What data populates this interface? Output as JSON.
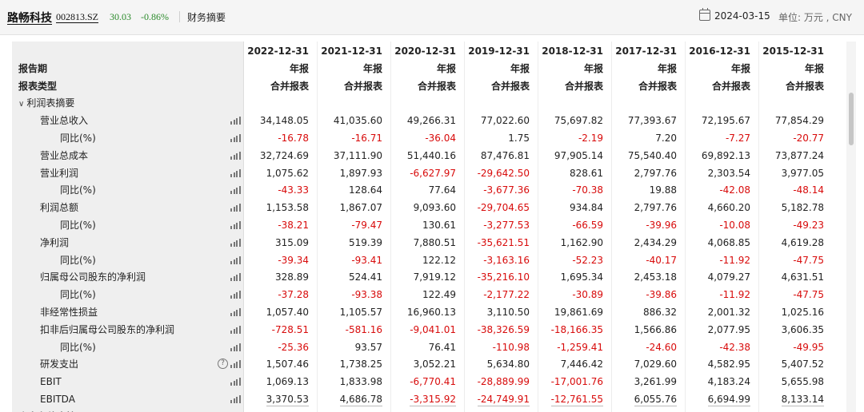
{
  "header": {
    "stock_name": "路畅科技",
    "stock_code": "002813.SZ",
    "price": "30.03",
    "change": "-0.86%",
    "section": "财务摘要",
    "report_date": "2024-03-15",
    "unit": "单位: 万元 , CNY",
    "price_color": "#2a8a2a"
  },
  "table": {
    "columns": [
      "2022-12-31",
      "2021-12-31",
      "2020-12-31",
      "2019-12-31",
      "2018-12-31",
      "2017-12-31",
      "2016-12-31",
      "2015-12-31"
    ],
    "period_label": "报告期",
    "period_values": [
      "年报",
      "年报",
      "年报",
      "年报",
      "年报",
      "年报",
      "年报",
      "年报"
    ],
    "type_label": "报表类型",
    "type_values": [
      "合并报表",
      "合并报表",
      "合并报表",
      "合并报表",
      "合并报表",
      "合并报表",
      "合并报表",
      "合并报表"
    ],
    "group_title": "利润表摘要",
    "next_group_title": "资产负债表摘要",
    "rows": [
      {
        "label": "营业总收入",
        "indent": 1,
        "values": [
          "34,148.05",
          "41,035.60",
          "49,266.31",
          "77,022.60",
          "75,697.82",
          "77,393.67",
          "72,195.67",
          "77,854.29"
        ]
      },
      {
        "label": "同比(%)",
        "indent": 2,
        "values": [
          "-16.78",
          "-16.71",
          "-36.04",
          "1.75",
          "-2.19",
          "7.20",
          "-7.27",
          "-20.77"
        ]
      },
      {
        "label": "营业总成本",
        "indent": 1,
        "values": [
          "32,724.69",
          "37,111.90",
          "51,440.16",
          "87,476.81",
          "97,905.14",
          "75,540.40",
          "69,892.13",
          "73,877.24"
        ]
      },
      {
        "label": "营业利润",
        "indent": 1,
        "values": [
          "1,075.62",
          "1,897.93",
          "-6,627.97",
          "-29,642.50",
          "828.61",
          "2,797.76",
          "2,303.54",
          "3,977.05"
        ]
      },
      {
        "label": "同比(%)",
        "indent": 2,
        "values": [
          "-43.33",
          "128.64",
          "77.64",
          "-3,677.36",
          "-70.38",
          "19.88",
          "-42.08",
          "-48.14"
        ]
      },
      {
        "label": "利润总额",
        "indent": 1,
        "values": [
          "1,153.58",
          "1,867.07",
          "9,093.60",
          "-29,704.65",
          "934.84",
          "2,797.76",
          "4,660.20",
          "5,182.78"
        ]
      },
      {
        "label": "同比(%)",
        "indent": 2,
        "values": [
          "-38.21",
          "-79.47",
          "130.61",
          "-3,277.53",
          "-66.59",
          "-39.96",
          "-10.08",
          "-49.23"
        ]
      },
      {
        "label": "净利润",
        "indent": 1,
        "values": [
          "315.09",
          "519.39",
          "7,880.51",
          "-35,621.51",
          "1,162.90",
          "2,434.29",
          "4,068.85",
          "4,619.28"
        ]
      },
      {
        "label": "同比(%)",
        "indent": 2,
        "values": [
          "-39.34",
          "-93.41",
          "122.12",
          "-3,163.16",
          "-52.23",
          "-40.17",
          "-11.92",
          "-47.75"
        ]
      },
      {
        "label": "归属母公司股东的净利润",
        "indent": 1,
        "values": [
          "328.89",
          "524.41",
          "7,919.12",
          "-35,216.10",
          "1,695.34",
          "2,453.18",
          "4,079.27",
          "4,631.51"
        ]
      },
      {
        "label": "同比(%)",
        "indent": 2,
        "values": [
          "-37.28",
          "-93.38",
          "122.49",
          "-2,177.22",
          "-30.89",
          "-39.86",
          "-11.92",
          "-47.75"
        ]
      },
      {
        "label": "非经常性损益",
        "indent": 1,
        "values": [
          "1,057.40",
          "1,105.57",
          "16,960.13",
          "3,110.50",
          "19,861.69",
          "886.32",
          "2,001.32",
          "1,025.16"
        ]
      },
      {
        "label": "扣非后归属母公司股东的净利润",
        "indent": 1,
        "values": [
          "-728.51",
          "-581.16",
          "-9,041.01",
          "-38,326.59",
          "-18,166.35",
          "1,566.86",
          "2,077.95",
          "3,606.35"
        ]
      },
      {
        "label": "同比(%)",
        "indent": 2,
        "values": [
          "-25.36",
          "93.57",
          "76.41",
          "-110.98",
          "-1,259.41",
          "-24.60",
          "-42.38",
          "-49.95"
        ]
      },
      {
        "label": "研发支出",
        "indent": 1,
        "help": true,
        "values": [
          "1,507.46",
          "1,738.25",
          "3,052.21",
          "5,634.80",
          "7,446.42",
          "7,029.60",
          "4,582.95",
          "5,407.52"
        ]
      },
      {
        "label": "EBIT",
        "indent": 1,
        "values": [
          "1,069.13",
          "1,833.98",
          "-6,770.41",
          "-28,889.99",
          "-17,001.76",
          "3,261.99",
          "4,183.24",
          "5,655.98"
        ]
      },
      {
        "label": "EBITDA",
        "indent": 1,
        "underline": true,
        "values": [
          "3,370.53",
          "4,686.78",
          "-3,315.92",
          "-24,749.91",
          "-12,761.55",
          "6,055.76",
          "6,694.99",
          "8,133.14"
        ]
      }
    ]
  },
  "icons": {
    "calendar": "calendar-icon",
    "chart": "bar-chart-icon",
    "help": "question-mark-icon",
    "expand": "chevron-down-icon"
  },
  "colors": {
    "negative": "#d80b0b",
    "positive_price": "#2a8a2a",
    "label_bg": "#efefef"
  }
}
